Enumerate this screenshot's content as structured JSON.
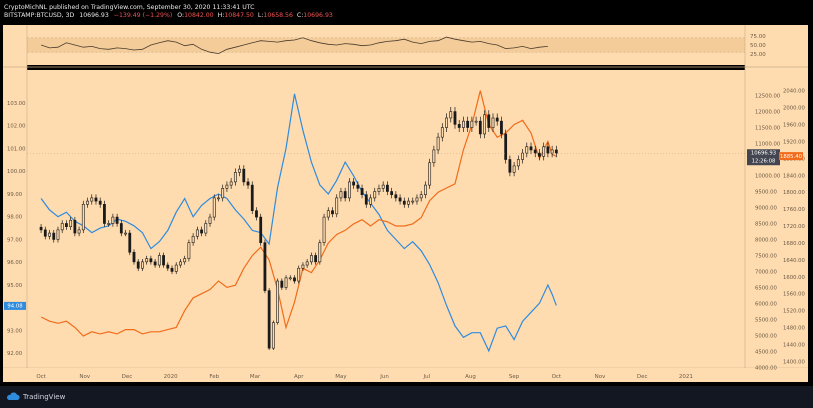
{
  "header": {
    "line1": "CryptoMichNL published on TradingView.com, September 30, 2020 11:33:41 UTC",
    "symbol": "BITSTAMP:BTCUSD, 3D",
    "price": "10696.93",
    "change": "−139.49 (−1.29%)",
    "ohlc_o": "O:",
    "ohlc_o_val": "10842.00",
    "ohlc_h": "H:",
    "ohlc_h_val": "10847.50",
    "ohlc_l": "L:",
    "ohlc_l_val": "10658.56",
    "ohlc_c": "C:",
    "ohlc_c_val": "10696.93"
  },
  "footer": {
    "brand": "TradingView"
  },
  "colors": {
    "background": "#ffdcb0",
    "btc_candles": "#1a1a1a",
    "blue_series": "#2f8bde",
    "orange_series": "#f26b1b",
    "rsi_band": "#f3cc9a",
    "price_tag": "#434651",
    "blue_tag": "#2f8bde",
    "orange_tag": "#f26b1b"
  },
  "chart_data": [
    {
      "type": "line",
      "panel": "oscillator",
      "y_ticks": [
        "75.00",
        "50.00",
        "25.00"
      ],
      "ylim": [
        0,
        100
      ],
      "band": [
        30,
        70
      ],
      "x": [
        0,
        6,
        12,
        18,
        24,
        30,
        36,
        42,
        48,
        54,
        60,
        66,
        72,
        78,
        84,
        90,
        96,
        102,
        108,
        114,
        120,
        126,
        132,
        138,
        144,
        150,
        156,
        162,
        168,
        174,
        180,
        186,
        192,
        198,
        204,
        210,
        216,
        222,
        228,
        234,
        240,
        246,
        252,
        258,
        264,
        270,
        276,
        282,
        288,
        294,
        300,
        306,
        312,
        318,
        324,
        330,
        336,
        342,
        348,
        354,
        360
      ],
      "values": [
        50,
        42,
        44,
        56,
        50,
        44,
        46,
        40,
        38,
        42,
        40,
        36,
        38,
        50,
        56,
        62,
        58,
        48,
        52,
        38,
        30,
        26,
        38,
        44,
        50,
        56,
        62,
        60,
        58,
        62,
        64,
        70,
        62,
        56,
        52,
        50,
        54,
        52,
        48,
        50,
        56,
        60,
        62,
        66,
        58,
        54,
        60,
        62,
        72,
        66,
        62,
        58,
        60,
        54,
        50,
        40,
        42,
        46,
        40,
        44,
        46
      ]
    },
    {
      "type": "candlestick",
      "panel": "price",
      "symbol": "BITSTAMP:BTCUSD",
      "timeframe": "3D",
      "x_ticks": [
        "Oct",
        "Nov",
        "Dec",
        "2020",
        "Feb",
        "Mar",
        "Apr",
        "May",
        "Jun",
        "Jul",
        "Aug",
        "Sep",
        "Oct",
        "Nov",
        "Dec",
        "2021"
      ],
      "x_tick_days": [
        0,
        31,
        61,
        92,
        123,
        152,
        183,
        213,
        244,
        274,
        305,
        336,
        366,
        397,
        427,
        458
      ],
      "xlim": [
        -10,
        500
      ],
      "ylim": [
        3980,
        13300
      ],
      "y_ticks": [
        "12500.00",
        "12000.00",
        "11500.00",
        "11000.00",
        "10500.00",
        "10000.00",
        "9500.00",
        "9000.00",
        "8500.00",
        "8000.00",
        "7500.00",
        "7000.00",
        "6500.00",
        "6000.00",
        "5500.00",
        "5000.00",
        "4500.00",
        "4000.00",
        "3500.00"
      ],
      "last_price": "10696.93",
      "countdown": "12:26:08",
      "x": [
        0,
        3,
        6,
        9,
        12,
        15,
        18,
        21,
        24,
        27,
        30,
        33,
        36,
        39,
        42,
        45,
        48,
        51,
        54,
        57,
        60,
        63,
        66,
        69,
        72,
        75,
        78,
        81,
        84,
        87,
        90,
        93,
        96,
        99,
        102,
        105,
        108,
        111,
        114,
        117,
        120,
        123,
        126,
        129,
        132,
        135,
        138,
        141,
        144,
        147,
        150,
        153,
        156,
        159,
        162,
        165,
        168,
        171,
        174,
        177,
        180,
        183,
        186,
        189,
        192,
        195,
        198,
        201,
        204,
        207,
        210,
        213,
        216,
        219,
        222,
        225,
        228,
        231,
        234,
        237,
        240,
        243,
        246,
        249,
        252,
        255,
        258,
        261,
        264,
        267,
        270,
        273,
        276,
        279,
        282,
        285,
        288,
        291,
        294,
        297,
        300,
        303,
        306,
        309,
        312,
        315,
        318,
        321,
        324,
        327,
        330,
        333,
        336,
        339,
        342,
        345,
        348,
        351,
        354,
        357,
        360,
        363,
        366
      ],
      "values": [
        8300,
        8100,
        8200,
        8000,
        8300,
        8500,
        8400,
        8600,
        8200,
        8300,
        9100,
        9200,
        9300,
        9200,
        9100,
        8500,
        8500,
        8700,
        8500,
        8200,
        8200,
        7600,
        7300,
        7100,
        7300,
        7400,
        7300,
        7200,
        7500,
        7200,
        7100,
        7000,
        7200,
        7300,
        7400,
        7900,
        8100,
        8300,
        8200,
        8500,
        8700,
        9300,
        9300,
        9600,
        9700,
        9800,
        10100,
        10200,
        9800,
        9700,
        8900,
        8700,
        7900,
        6400,
        4600,
        5400,
        6700,
        6500,
        6800,
        6800,
        6700,
        7100,
        7200,
        7300,
        7500,
        7300,
        7900,
        8700,
        8900,
        8800,
        9300,
        9500,
        9300,
        9800,
        9700,
        9600,
        9400,
        9100,
        9300,
        9500,
        9600,
        9700,
        9500,
        9400,
        9300,
        9200,
        9100,
        9200,
        9200,
        9300,
        9400,
        9700,
        10400,
        10800,
        11200,
        11500,
        11800,
        12000,
        11600,
        11500,
        11700,
        11500,
        11700,
        11700,
        11300,
        11900,
        11500,
        11800,
        11700,
        11300,
        10500,
        10100,
        10300,
        10500,
        10700,
        10900,
        10800,
        10700,
        10600,
        10900,
        10700,
        10800,
        10700
      ]
    },
    {
      "type": "line",
      "panel": "price",
      "scale": "left",
      "color_role": "blue_series",
      "left_ticks": [
        "103.00",
        "102.00",
        "101.00",
        "100.00",
        "99.00",
        "98.00",
        "97.00",
        "96.00",
        "95.00",
        "94.00",
        "93.00",
        "92.00"
      ],
      "ylim": [
        91.35,
        104.45
      ],
      "last_value": "94.08",
      "x": [
        0,
        6,
        12,
        18,
        24,
        30,
        36,
        42,
        48,
        54,
        60,
        66,
        72,
        78,
        84,
        90,
        96,
        102,
        108,
        114,
        120,
        126,
        132,
        138,
        144,
        150,
        156,
        162,
        168,
        174,
        180,
        186,
        192,
        198,
        204,
        210,
        216,
        222,
        228,
        234,
        240,
        246,
        252,
        258,
        264,
        270,
        276,
        282,
        288,
        294,
        300,
        306,
        312,
        318,
        324,
        330,
        336,
        342,
        348,
        354,
        360,
        363,
        366
      ],
      "values": [
        98.8,
        98.3,
        98.0,
        98.2,
        97.8,
        97.6,
        97.3,
        97.5,
        97.6,
        97.9,
        97.8,
        97.6,
        97.3,
        96.6,
        96.9,
        97.4,
        98.2,
        98.8,
        98.0,
        98.5,
        98.8,
        99.0,
        98.8,
        98.3,
        97.9,
        97.4,
        97.3,
        96.8,
        99.3,
        101.0,
        103.4,
        101.8,
        100.4,
        99.4,
        99.0,
        99.6,
        100.4,
        99.8,
        99.1,
        98.6,
        98.1,
        97.4,
        97.0,
        96.6,
        96.9,
        96.5,
        95.9,
        95.1,
        94.1,
        93.2,
        92.7,
        92.9,
        92.9,
        92.1,
        93.1,
        93.2,
        92.6,
        93.4,
        93.8,
        94.2,
        95.0,
        94.6,
        94.1
      ]
    },
    {
      "type": "line",
      "panel": "price",
      "scale": "right",
      "color_role": "orange_series",
      "right_ticks": [
        "2040.00",
        "2000.00",
        "1960.00",
        "1920.00",
        "1880.00",
        "1840.00",
        "1800.00",
        "1760.00",
        "1720.00",
        "1680.00",
        "1640.00",
        "1600.00",
        "1560.00",
        "1520.00",
        "1480.00",
        "1440.00",
        "1400.00"
      ],
      "ylim": [
        1384.3,
        2089
      ],
      "last_value": "1885.40",
      "x": [
        0,
        6,
        12,
        18,
        24,
        30,
        36,
        42,
        48,
        54,
        60,
        66,
        72,
        78,
        84,
        90,
        96,
        102,
        108,
        114,
        120,
        126,
        132,
        138,
        144,
        150,
        156,
        162,
        168,
        174,
        180,
        186,
        192,
        198,
        204,
        210,
        216,
        222,
        228,
        234,
        240,
        246,
        252,
        258,
        264,
        270,
        276,
        282,
        288,
        294,
        300,
        306,
        312,
        318,
        324,
        330,
        336,
        342,
        348,
        354,
        360,
        363,
        366
      ],
      "values": [
        1505,
        1495,
        1490,
        1495,
        1480,
        1460,
        1470,
        1465,
        1470,
        1465,
        1475,
        1475,
        1465,
        1470,
        1470,
        1475,
        1480,
        1520,
        1550,
        1560,
        1570,
        1590,
        1575,
        1580,
        1620,
        1650,
        1670,
        1640,
        1570,
        1480,
        1540,
        1620,
        1610,
        1640,
        1680,
        1700,
        1710,
        1725,
        1735,
        1720,
        1735,
        1730,
        1720,
        1720,
        1725,
        1740,
        1780,
        1800,
        1810,
        1820,
        1900,
        1960,
        2040,
        1960,
        1930,
        1940,
        1960,
        1970,
        1940,
        1880,
        1920,
        1890,
        1885
      ]
    }
  ]
}
